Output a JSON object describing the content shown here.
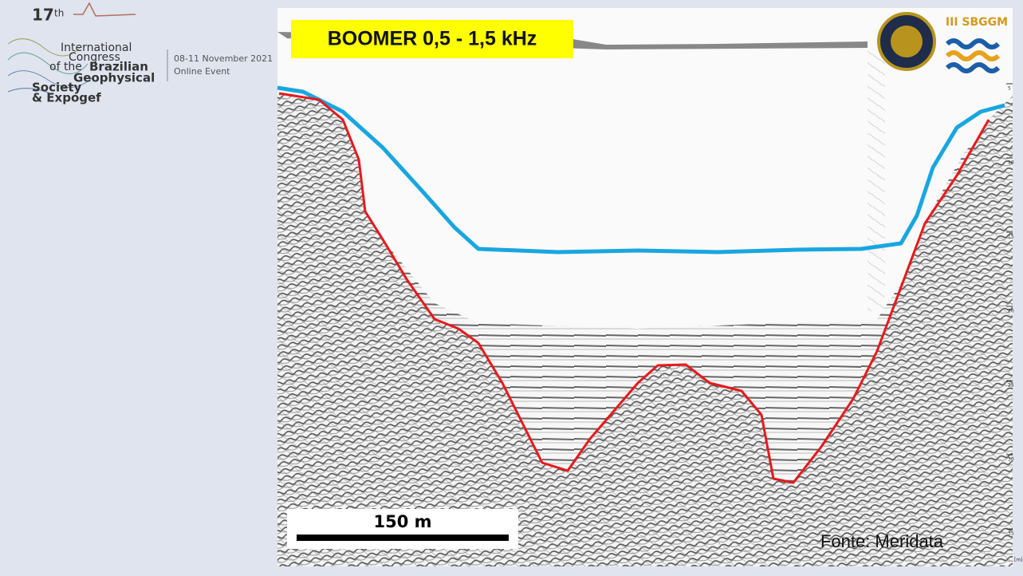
{
  "logo": {
    "edition": "17",
    "edition_suffix": "th",
    "lines": [
      "International",
      "Congress",
      "of the",
      "Brazilian",
      "Geophysical",
      "Society",
      "& Expogef"
    ]
  },
  "event": {
    "dates": "08-11 November 2021",
    "mode": "Online Event"
  },
  "figure": {
    "title": "BOOMER 0,5 - 1,5 kHz",
    "partner": "III SBGGM",
    "scale_bar": "150 m",
    "source": "Fonte: Meridata",
    "depth_ticks": [
      5,
      10,
      15,
      20,
      25,
      30,
      35
    ],
    "depth_unit": "[m]"
  }
}
